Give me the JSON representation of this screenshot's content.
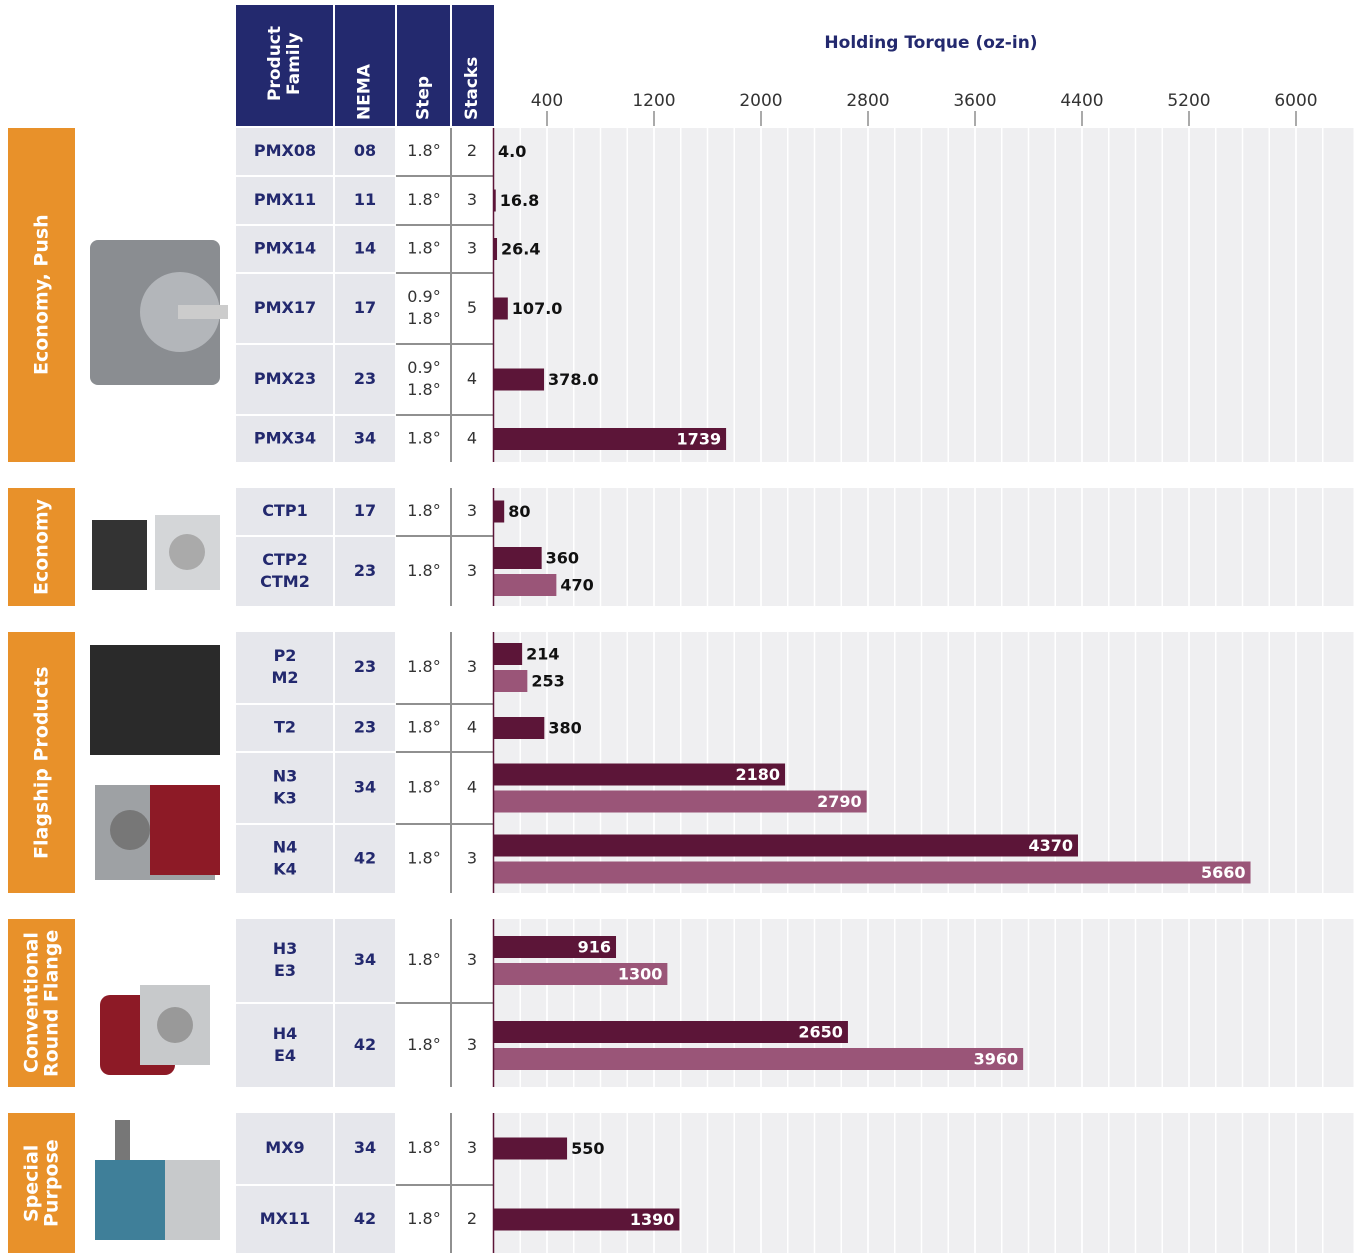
{
  "chart_data": {
    "type": "bar",
    "title": "Holding Torque (oz-in)",
    "columns": [
      "Product Family",
      "NEMA",
      "Step",
      "Stacks"
    ],
    "xlim": [
      0,
      6400
    ],
    "xticks": [
      400,
      1200,
      2000,
      2800,
      3600,
      4400,
      5200,
      6000
    ],
    "grid": true,
    "colors": [
      "#5c1538",
      "#9a5578"
    ],
    "groups": [
      {
        "name": "Economy, Push",
        "rows": [
          {
            "family": [
              "PMX08"
            ],
            "nema": "08",
            "step": [
              "1.8°"
            ],
            "stacks": 2,
            "values": [
              4
            ],
            "value_labels": [
              "4.0"
            ]
          },
          {
            "family": [
              "PMX11"
            ],
            "nema": "11",
            "step": [
              "1.8°"
            ],
            "stacks": 3,
            "values": [
              16.8
            ]
          },
          {
            "family": [
              "PMX14"
            ],
            "nema": "14",
            "step": [
              "1.8°"
            ],
            "stacks": 3,
            "values": [
              26.4
            ]
          },
          {
            "family": [
              "PMX17"
            ],
            "nema": "17",
            "step": [
              "0.9°",
              "1.8°"
            ],
            "stacks": 5,
            "values": [
              107
            ],
            "value_labels": [
              "107.0"
            ]
          },
          {
            "family": [
              "PMX23"
            ],
            "nema": "23",
            "step": [
              "0.9°",
              "1.8°"
            ],
            "stacks": 4,
            "values": [
              378
            ],
            "value_labels": [
              "378.0"
            ]
          },
          {
            "family": [
              "PMX34"
            ],
            "nema": "34",
            "step": [
              "1.8°"
            ],
            "stacks": 4,
            "values": [
              1739
            ]
          }
        ]
      },
      {
        "name": "Economy",
        "rows": [
          {
            "family": [
              "CTP1"
            ],
            "nema": "17",
            "step": [
              "1.8°"
            ],
            "stacks": 3,
            "values": [
              80
            ]
          },
          {
            "family": [
              "CTP2",
              "CTM2"
            ],
            "nema": "23",
            "step": [
              "1.8°"
            ],
            "stacks": 3,
            "values": [
              360,
              470
            ]
          }
        ]
      },
      {
        "name": "Flagship Products",
        "rows": [
          {
            "family": [
              "P2",
              "M2"
            ],
            "nema": "23",
            "step": [
              "1.8°"
            ],
            "stacks": 3,
            "values": [
              214,
              253
            ]
          },
          {
            "family": [
              "T2"
            ],
            "nema": "23",
            "step": [
              "1.8°"
            ],
            "stacks": 4,
            "values": [
              380
            ]
          },
          {
            "family": [
              "N3",
              "K3"
            ],
            "nema": "34",
            "step": [
              "1.8°"
            ],
            "stacks": 4,
            "values": [
              2180,
              2790
            ]
          },
          {
            "family": [
              "N4",
              "K4"
            ],
            "nema": "42",
            "step": [
              "1.8°"
            ],
            "stacks": 3,
            "values": [
              4370,
              5660
            ]
          }
        ]
      },
      {
        "name": "Conventional Round Flange",
        "rows": [
          {
            "family": [
              "H3",
              "E3"
            ],
            "nema": "34",
            "step": [
              "1.8°"
            ],
            "stacks": 3,
            "values": [
              916,
              1300
            ]
          },
          {
            "family": [
              "H4",
              "E4"
            ],
            "nema": "42",
            "step": [
              "1.8°"
            ],
            "stacks": 3,
            "values": [
              2650,
              3960
            ]
          }
        ]
      },
      {
        "name": "Special Purpose",
        "rows": [
          {
            "family": [
              "MX9"
            ],
            "nema": "34",
            "step": [
              "1.8°"
            ],
            "stacks": 3,
            "values": [
              550
            ]
          },
          {
            "family": [
              "MX11"
            ],
            "nema": "42",
            "step": [
              "1.8°"
            ],
            "stacks": 2,
            "values": [
              1390
            ]
          }
        ]
      }
    ]
  }
}
